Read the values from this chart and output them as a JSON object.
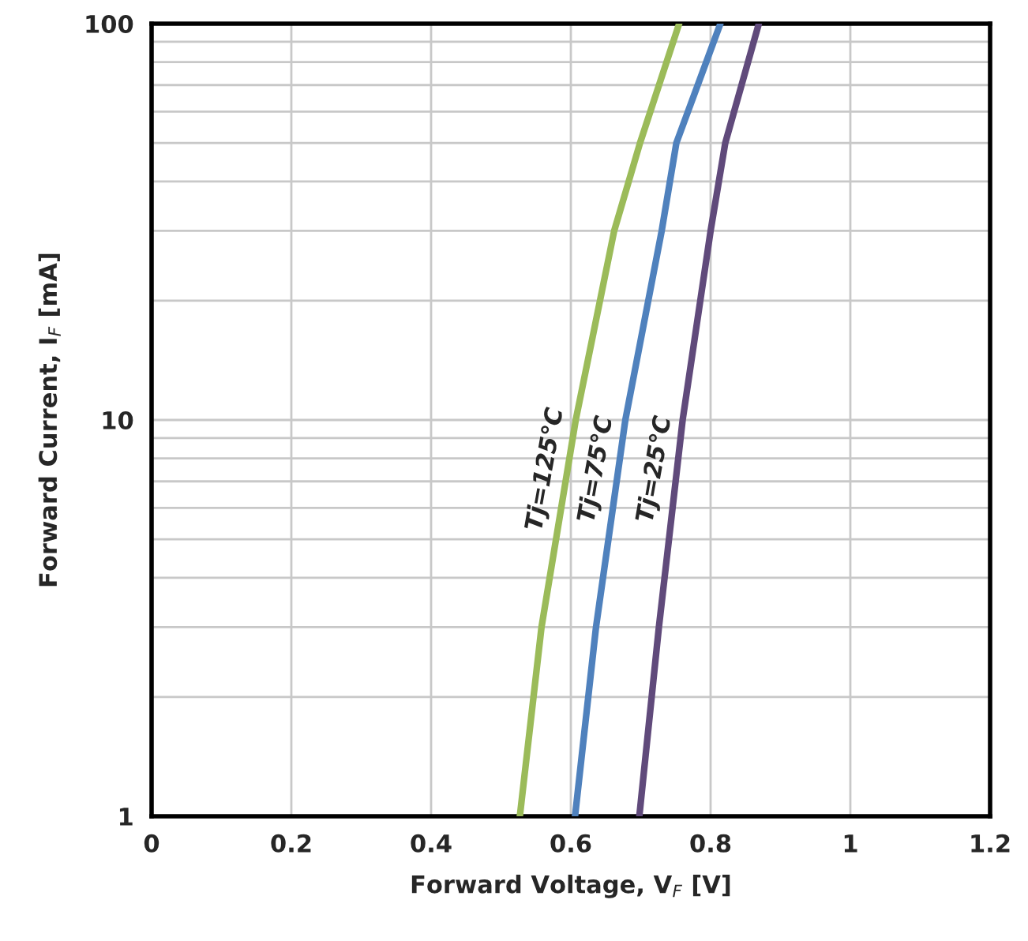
{
  "chart_data": {
    "type": "line",
    "xlabel": "Forward Voltage, V$_{F}$ [V]",
    "ylabel": "Forward Current, I$_{F}$ [mA]",
    "log": "y",
    "xlim": [
      0,
      1.2
    ],
    "xticks": [
      0,
      0.2,
      0.4,
      0.6,
      0.8,
      1,
      1.2
    ],
    "ylim": [
      1,
      100
    ],
    "yticks": [
      1,
      10,
      100
    ],
    "grid": true,
    "legend": false,
    "marker": "none",
    "line_style": "solid",
    "series": [
      {
        "name": "Tj=125℃",
        "color": "#9bbb59",
        "x": [
          0.527,
          0.558,
          0.607,
          0.662,
          0.699,
          0.755
        ],
        "values": [
          1,
          3,
          10,
          30,
          50,
          100
        ]
      },
      {
        "name": "Tj=75℃",
        "color": "#4f81bd",
        "x": [
          0.606,
          0.636,
          0.678,
          0.73,
          0.751,
          0.814
        ],
        "values": [
          1,
          3,
          10,
          30,
          50,
          100
        ]
      },
      {
        "name": "Tj=25℃",
        "color": "#604a7b",
        "x": [
          0.698,
          0.726,
          0.76,
          0.8,
          0.821,
          0.869
        ],
        "values": [
          1,
          3,
          10,
          30,
          50,
          100
        ]
      }
    ]
  }
}
